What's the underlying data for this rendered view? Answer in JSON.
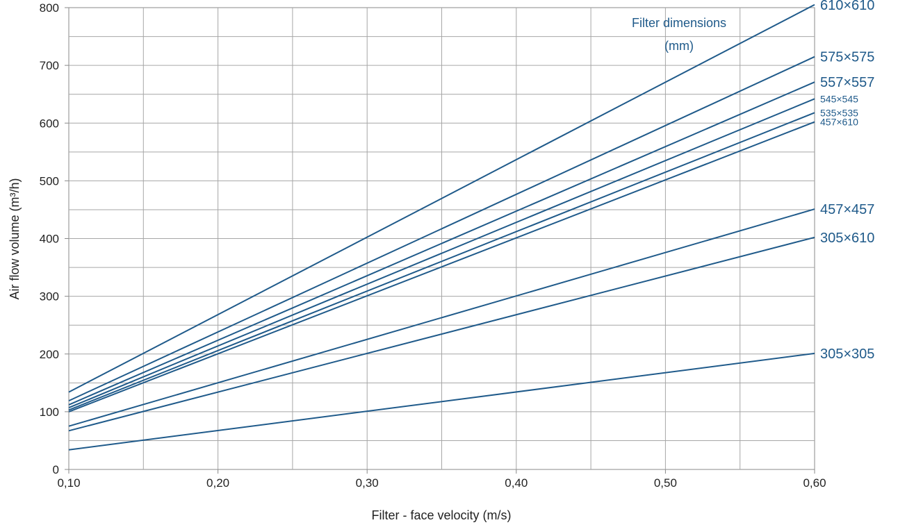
{
  "chart_data": {
    "type": "line",
    "title": "",
    "xlabel": "Filter - face velocity (m/s)",
    "ylabel": "Air flow volume (m³/h)",
    "xlim": [
      0.1,
      0.6
    ],
    "ylim": [
      0,
      800
    ],
    "x_ticks": [
      0.1,
      0.2,
      0.3,
      0.4,
      0.5,
      0.6
    ],
    "x_tick_labels": [
      "0,10",
      "0,20",
      "0,30",
      "0,40",
      "0,50",
      "0,60"
    ],
    "y_ticks": [
      0,
      100,
      200,
      300,
      400,
      500,
      600,
      700,
      800
    ],
    "y_tick_labels": [
      "0",
      "100",
      "200",
      "300",
      "400",
      "500",
      "600",
      "700",
      "800"
    ],
    "grid": true,
    "legend_title": [
      "Filter dimensions",
      "(mm)"
    ],
    "line_color": "#1f5a8a",
    "series": [
      {
        "name": "610×610",
        "label_size": "large",
        "x": [
          0.1,
          0.6
        ],
        "y": [
          134,
          805
        ]
      },
      {
        "name": "575×575",
        "label_size": "large",
        "x": [
          0.1,
          0.6
        ],
        "y": [
          119,
          715
        ]
      },
      {
        "name": "557×557",
        "label_size": "large",
        "x": [
          0.1,
          0.6
        ],
        "y": [
          112,
          671
        ]
      },
      {
        "name": "545×545",
        "label_size": "small",
        "x": [
          0.1,
          0.6
        ],
        "y": [
          107,
          642
        ]
      },
      {
        "name": "535×535",
        "label_size": "small",
        "x": [
          0.1,
          0.6
        ],
        "y": [
          103,
          618
        ]
      },
      {
        "name": "457×610",
        "label_size": "small",
        "x": [
          0.1,
          0.6
        ],
        "y": [
          100,
          602
        ]
      },
      {
        "name": "457×457",
        "label_size": "large",
        "x": [
          0.1,
          0.6
        ],
        "y": [
          75,
          451
        ]
      },
      {
        "name": "305×610",
        "label_size": "large",
        "x": [
          0.1,
          0.6
        ],
        "y": [
          67,
          402
        ]
      },
      {
        "name": "305×305",
        "label_size": "large",
        "x": [
          0.1,
          0.6
        ],
        "y": [
          34,
          201
        ]
      }
    ]
  }
}
